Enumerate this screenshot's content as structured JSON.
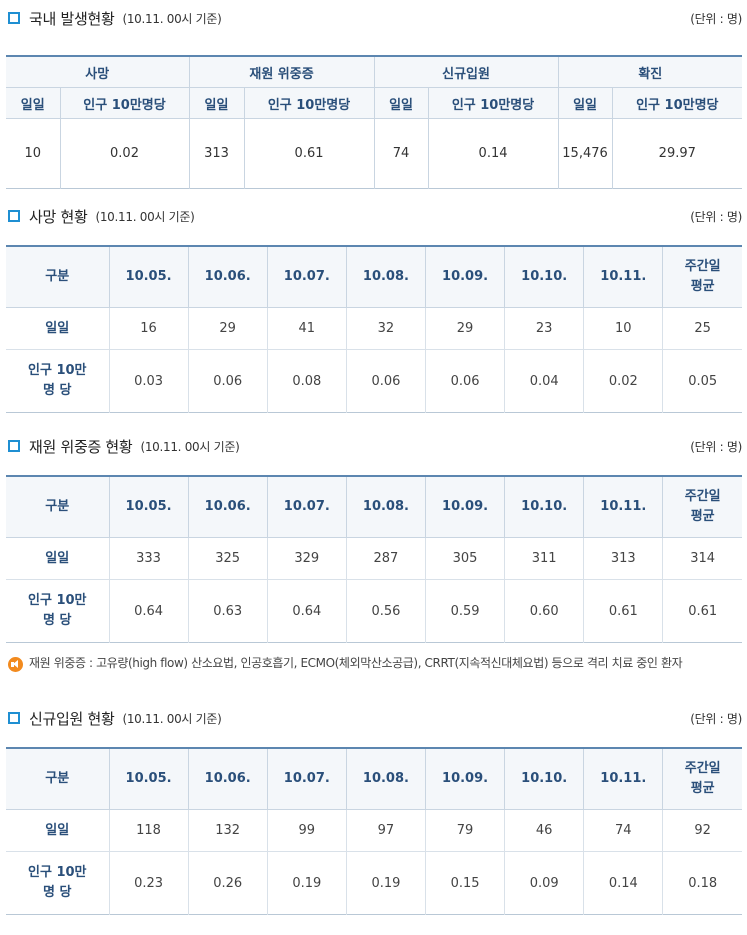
{
  "unit_label": "(단위 : 명)",
  "basis_label": "(10.11. 00시 기준)",
  "summary": {
    "title": "국내 발생현황",
    "groups": [
      "사망",
      "재원 위중증",
      "신규입원",
      "확진"
    ],
    "sub_headers": [
      "일일",
      "인구 10만명당"
    ],
    "values": [
      {
        "daily": "10",
        "per100k": "0.02"
      },
      {
        "daily": "313",
        "per100k": "0.61"
      },
      {
        "daily": "74",
        "per100k": "0.14"
      },
      {
        "daily": "15,476",
        "per100k": "29.97"
      }
    ]
  },
  "detail_header": {
    "label": "구분",
    "dates": [
      "10.05.",
      "10.06.",
      "10.07.",
      "10.08.",
      "10.09.",
      "10.10.",
      "10.11."
    ],
    "avg_line1": "주간일",
    "avg_line2": "평균",
    "row_daily": "일일",
    "row_per_line1": "인구 10만",
    "row_per_line2": "명 당"
  },
  "tables": [
    {
      "title": "사망 현황",
      "daily": [
        "16",
        "29",
        "41",
        "32",
        "29",
        "23",
        "10",
        "25"
      ],
      "per100k": [
        "0.03",
        "0.06",
        "0.08",
        "0.06",
        "0.06",
        "0.04",
        "0.02",
        "0.05"
      ]
    },
    {
      "title": "재원 위중증 현황",
      "daily": [
        "333",
        "325",
        "329",
        "287",
        "305",
        "311",
        "313",
        "314"
      ],
      "per100k": [
        "0.64",
        "0.63",
        "0.64",
        "0.56",
        "0.59",
        "0.60",
        "0.61",
        "0.61"
      ]
    },
    {
      "title": "신규입원 현황",
      "daily": [
        "118",
        "132",
        "99",
        "97",
        "79",
        "46",
        "74",
        "92"
      ],
      "per100k": [
        "0.23",
        "0.26",
        "0.19",
        "0.19",
        "0.15",
        "0.09",
        "0.14",
        "0.18"
      ]
    }
  ],
  "note": {
    "icon": "speaker-icon",
    "text": "재원 위중증 : 고유량(high flow) 산소요법, 인공호흡기, ECMO(체외막산소공급), CRRT(지속적신대체요법) 등으로 격리 치료 중인 환자"
  },
  "colors": {
    "icon_blue": "#1f8fd2",
    "header_text": "#2a4f7a",
    "header_bg": "#f4f7fa",
    "note_icon": "#f28a1e"
  }
}
